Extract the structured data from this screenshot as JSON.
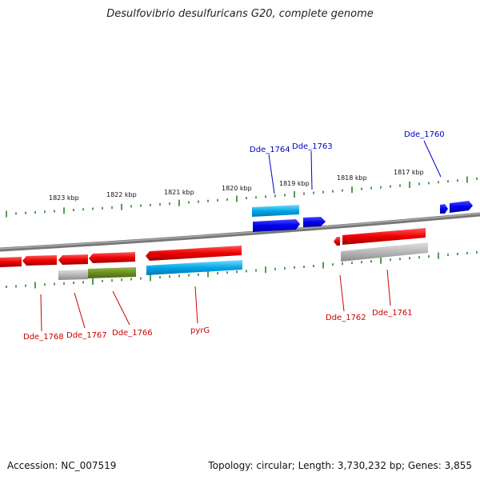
{
  "title": "Desulfovibrio desulfuricans G20, complete genome",
  "footer": {
    "accession": "Accession: NC_007519",
    "summary": "Topology: circular; Length: 3,730,232 bp; Genes: 3,855"
  },
  "scale_labels": [
    "1823 kbp",
    "1822 kbp",
    "1821 kbp",
    "1820 kbp",
    "1819 kbp",
    "1818 kbp",
    "1817 kbp"
  ],
  "gene_labels": {
    "top": [
      "Dde_1764",
      "Dde_1763",
      "Dde_1760"
    ],
    "bottom": [
      "Dde_1768",
      "Dde_1767",
      "Dde_1766",
      "pyrG",
      "Dde_1762",
      "Dde_1761"
    ]
  },
  "colors": {
    "forward_gene": "#0000ee",
    "reverse_gene": "#ee0000",
    "rna_feature": "#00a8e8",
    "grey_feature": "#b0b0b0",
    "olive_feature": "#6b8e23",
    "backbone": "#808080",
    "ticks": "#1a7a1a"
  }
}
